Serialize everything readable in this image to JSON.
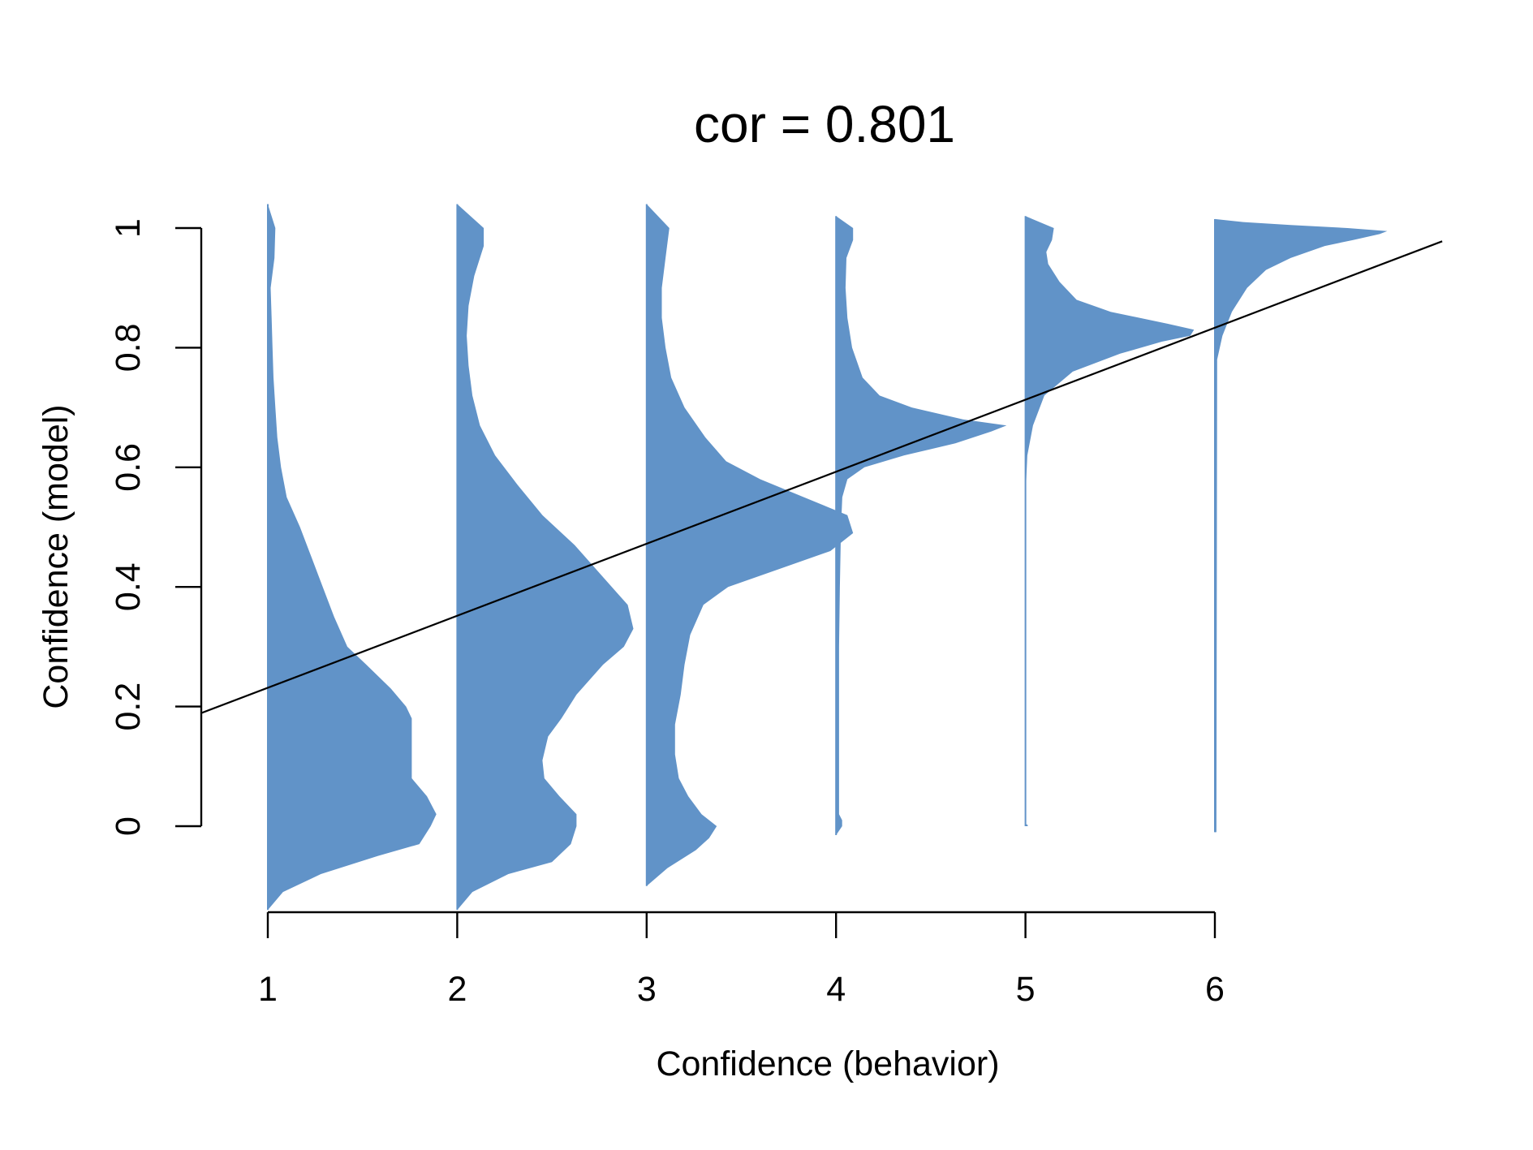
{
  "chart_data": {
    "type": "violin",
    "title": "cor = 0.801",
    "xlabel": "Confidence (behavior)",
    "ylabel": "Confidence (model)",
    "x_ticks": [
      "1",
      "2",
      "3",
      "4",
      "5",
      "6"
    ],
    "y_ticks": [
      "0",
      "0.2",
      "0.4",
      "0.6",
      "0.8",
      "1"
    ],
    "xlim": [
      0.65,
      7.25
    ],
    "ylim": [
      -0.19,
      1.12
    ],
    "grid": false,
    "fill_color": "#6193c8",
    "fit_line": {
      "slope": 0.1204,
      "intercept": 0.111,
      "x_range": [
        0.65,
        7.2
      ]
    },
    "violins": [
      {
        "category": "1",
        "y": [
          -0.14,
          -0.11,
          -0.08,
          -0.05,
          -0.03,
          0.0,
          0.02,
          0.05,
          0.08,
          0.11,
          0.14,
          0.18,
          0.2,
          0.23,
          0.27,
          0.3,
          0.35,
          0.4,
          0.45,
          0.5,
          0.55,
          0.6,
          0.65,
          0.7,
          0.75,
          0.8,
          0.85,
          0.9,
          0.95,
          1.0,
          1.04
        ],
        "width": [
          0.0,
          0.08,
          0.28,
          0.58,
          0.8,
          0.86,
          0.89,
          0.84,
          0.76,
          0.76,
          0.76,
          0.76,
          0.73,
          0.65,
          0.52,
          0.42,
          0.35,
          0.29,
          0.23,
          0.17,
          0.1,
          0.07,
          0.05,
          0.04,
          0.03,
          0.025,
          0.02,
          0.015,
          0.035,
          0.04,
          0.0
        ]
      },
      {
        "category": "2",
        "y": [
          -0.14,
          -0.11,
          -0.08,
          -0.06,
          -0.03,
          0.0,
          0.02,
          0.05,
          0.08,
          0.11,
          0.15,
          0.18,
          0.22,
          0.27,
          0.3,
          0.33,
          0.37,
          0.42,
          0.47,
          0.52,
          0.57,
          0.62,
          0.67,
          0.72,
          0.77,
          0.82,
          0.87,
          0.92,
          0.97,
          1.0,
          1.04
        ],
        "width": [
          0.0,
          0.08,
          0.27,
          0.5,
          0.6,
          0.63,
          0.63,
          0.54,
          0.46,
          0.45,
          0.48,
          0.55,
          0.63,
          0.77,
          0.88,
          0.93,
          0.9,
          0.76,
          0.62,
          0.45,
          0.32,
          0.2,
          0.12,
          0.08,
          0.06,
          0.05,
          0.06,
          0.09,
          0.14,
          0.14,
          0.0
        ]
      },
      {
        "category": "3",
        "y": [
          -0.1,
          -0.07,
          -0.04,
          -0.02,
          0.0,
          0.02,
          0.05,
          0.08,
          0.12,
          0.17,
          0.22,
          0.27,
          0.32,
          0.37,
          0.4,
          0.43,
          0.46,
          0.49,
          0.52,
          0.55,
          0.58,
          0.61,
          0.65,
          0.7,
          0.75,
          0.8,
          0.85,
          0.9,
          0.95,
          1.0,
          1.04
        ],
        "width": [
          0.0,
          0.11,
          0.26,
          0.33,
          0.37,
          0.29,
          0.22,
          0.17,
          0.15,
          0.15,
          0.18,
          0.2,
          0.23,
          0.3,
          0.43,
          0.7,
          0.97,
          1.09,
          1.06,
          0.83,
          0.6,
          0.42,
          0.31,
          0.2,
          0.13,
          0.1,
          0.08,
          0.08,
          0.1,
          0.12,
          0.0
        ]
      },
      {
        "category": "4",
        "y": [
          -0.015,
          0.0,
          0.01,
          0.02,
          0.05,
          0.1,
          0.2,
          0.3,
          0.4,
          0.5,
          0.55,
          0.58,
          0.6,
          0.62,
          0.64,
          0.66,
          0.67,
          0.68,
          0.7,
          0.72,
          0.75,
          0.8,
          0.85,
          0.9,
          0.95,
          0.98,
          1.0,
          1.02
        ],
        "width": [
          0.0,
          0.032,
          0.032,
          0.016,
          0.016,
          0.016,
          0.016,
          0.016,
          0.02,
          0.026,
          0.033,
          0.06,
          0.15,
          0.36,
          0.63,
          0.82,
          0.9,
          0.67,
          0.4,
          0.23,
          0.14,
          0.085,
          0.06,
          0.05,
          0.055,
          0.09,
          0.09,
          0.0
        ]
      },
      {
        "category": "5",
        "y": [
          0.0,
          0.002,
          0.004,
          0.55,
          0.62,
          0.67,
          0.72,
          0.76,
          0.79,
          0.81,
          0.82,
          0.83,
          0.84,
          0.86,
          0.88,
          0.91,
          0.94,
          0.96,
          0.98,
          1.0,
          1.02
        ],
        "width": [
          0.012,
          0.012,
          0.0,
          0.0,
          0.01,
          0.04,
          0.1,
          0.25,
          0.5,
          0.72,
          0.87,
          0.89,
          0.75,
          0.45,
          0.27,
          0.18,
          0.12,
          0.11,
          0.14,
          0.15,
          0.0
        ]
      },
      {
        "category": "6",
        "y": [
          -0.01,
          0.78,
          0.82,
          0.86,
          0.9,
          0.93,
          0.95,
          0.97,
          0.98,
          0.99,
          0.995,
          1.0,
          1.005,
          1.01,
          1.015
        ],
        "width": [
          0.008,
          0.012,
          0.04,
          0.09,
          0.17,
          0.27,
          0.4,
          0.58,
          0.73,
          0.87,
          0.91,
          0.7,
          0.4,
          0.15,
          0.0
        ]
      }
    ]
  }
}
